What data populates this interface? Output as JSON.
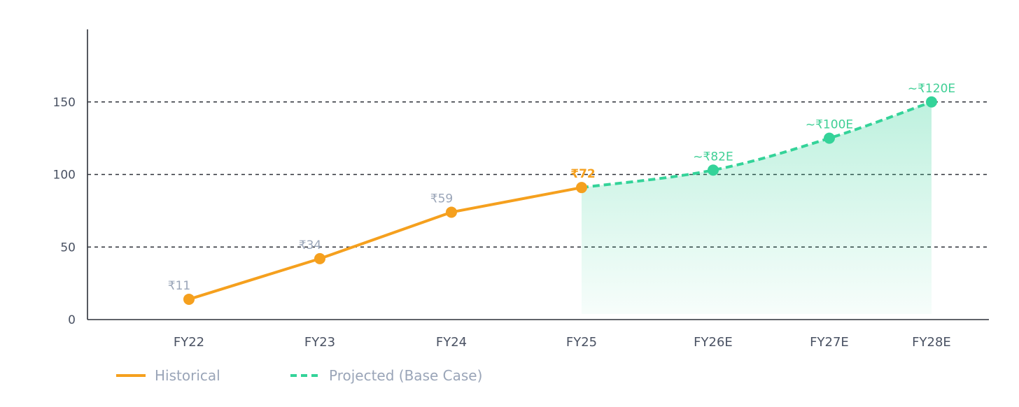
{
  "chart_data": {
    "type": "line",
    "title": "",
    "xlabel": "",
    "ylabel": "",
    "ylim": [
      0,
      200
    ],
    "yticks": [
      0,
      50,
      100,
      150
    ],
    "grid": "horizontal-dashed",
    "legend_position": "bottom-left",
    "categories": [
      "FY22",
      "FY23",
      "FY24",
      "FY25",
      "FY26E",
      "FY27E",
      "FY28E"
    ],
    "series": [
      {
        "name": "Historical",
        "style": "solid",
        "color": "#f5a01e",
        "x": [
          "FY22",
          "FY23",
          "FY24",
          "FY25"
        ],
        "values": [
          14,
          42,
          74,
          91
        ],
        "labels": [
          "₹11",
          "₹34",
          "₹59",
          "₹72"
        ]
      },
      {
        "name": "Projected (Base Case)",
        "style": "dashed",
        "color": "#34d399",
        "x": [
          "FY25",
          "FY26E",
          "FY27E",
          "FY28E"
        ],
        "values": [
          91,
          103,
          125,
          150
        ],
        "labels": [
          "",
          "~₹82E",
          "~₹100E",
          "~₹120E"
        ]
      }
    ],
    "colors": {
      "historical": "#f5a01e",
      "projected": "#34d399",
      "historical_tick": "#4a5263",
      "projected_tick": "#3fcf95",
      "historical_label": "#9aa5b8",
      "highlight_label": "#f5a01e",
      "axis": "#2d3038",
      "grid": "#2d3038"
    }
  }
}
